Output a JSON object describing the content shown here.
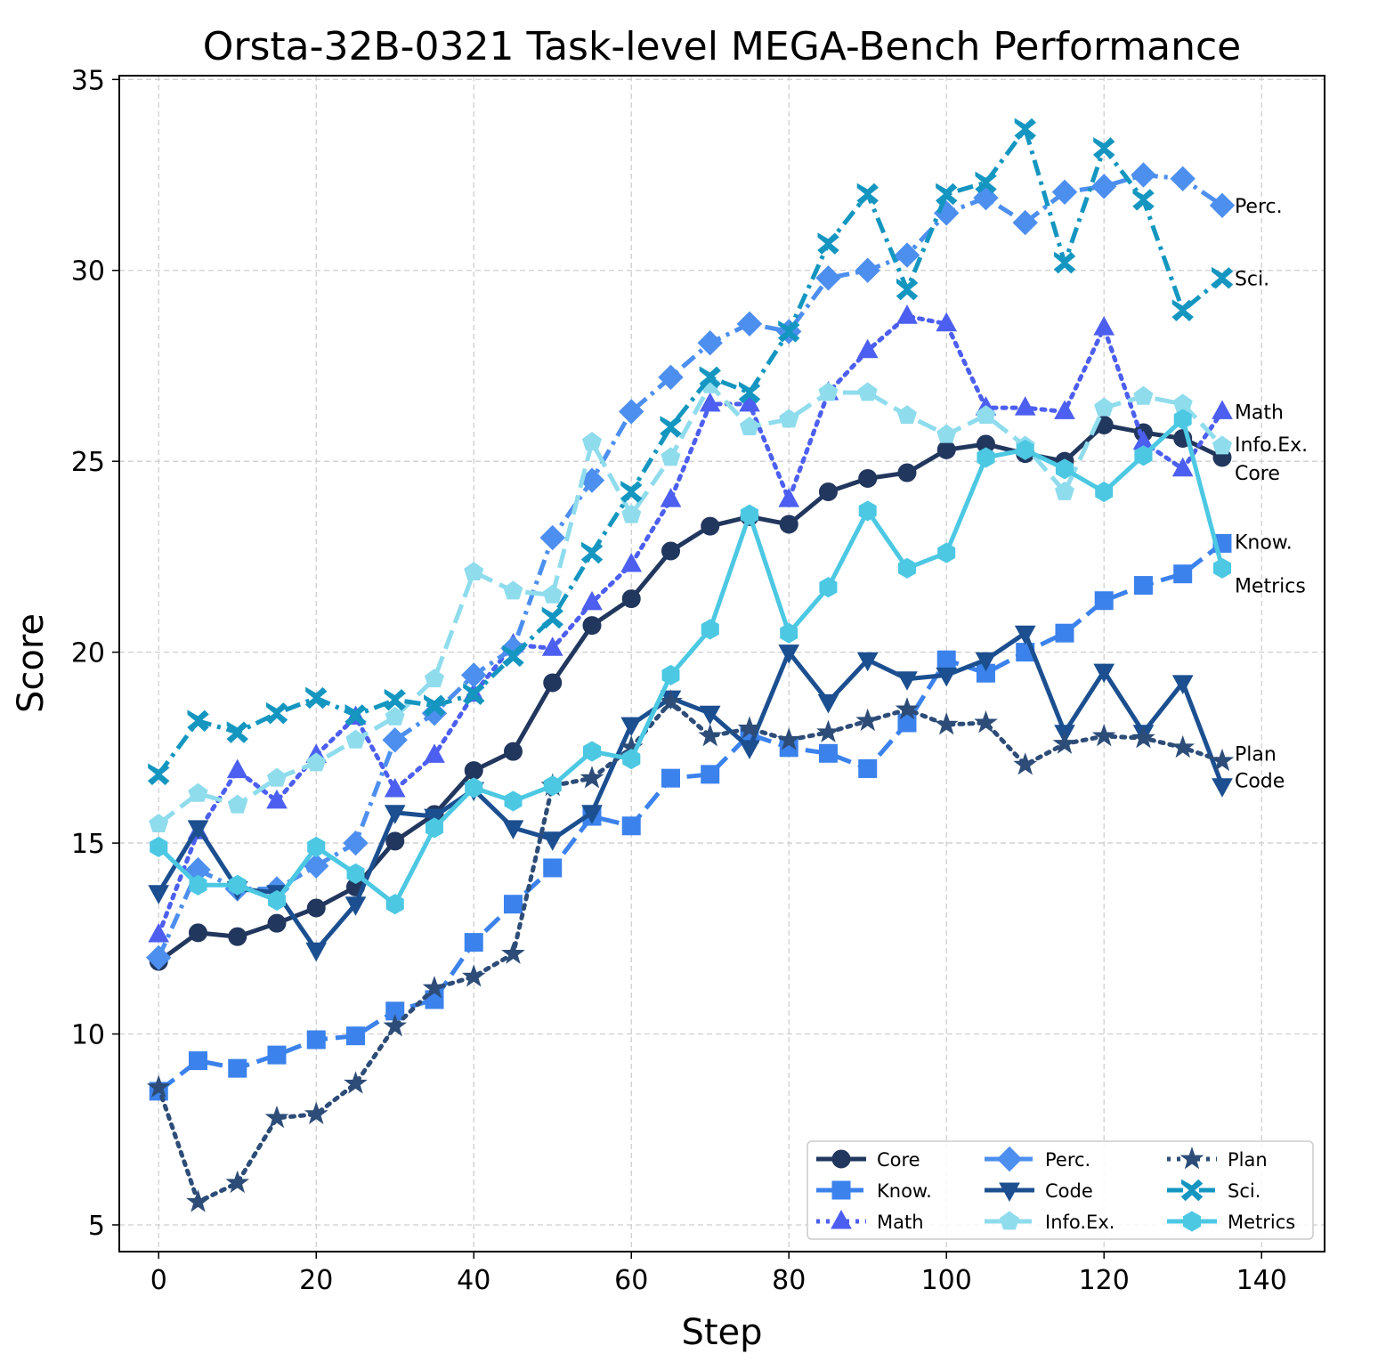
{
  "chart_data": {
    "type": "line",
    "title": "Orsta-32B-0321 Task-level MEGA-Bench Performance",
    "xlabel": "Step",
    "ylabel": "Score",
    "xlim": [
      -5,
      148
    ],
    "ylim": [
      4.3,
      35.1
    ],
    "xticks": [
      0,
      20,
      40,
      60,
      80,
      100,
      120,
      140
    ],
    "yticks": [
      5,
      10,
      15,
      20,
      25,
      30,
      35
    ],
    "grid": true,
    "legend_position": "lower-right",
    "legend_columns": 3,
    "x": [
      0,
      5,
      10,
      15,
      20,
      25,
      30,
      35,
      40,
      45,
      50,
      55,
      60,
      65,
      70,
      75,
      80,
      85,
      90,
      95,
      100,
      105,
      110,
      115,
      120,
      125,
      130,
      135
    ],
    "series": [
      {
        "name": "Core",
        "end_label": "Core",
        "color": "#22375e",
        "dash": "solid",
        "marker": "circle",
        "values": [
          11.9,
          12.65,
          12.55,
          12.9,
          13.3,
          13.85,
          15.05,
          15.75,
          16.9,
          17.4,
          19.2,
          20.7,
          21.4,
          22.65,
          23.3,
          23.55,
          23.35,
          24.2,
          24.55,
          24.7,
          25.3,
          25.45,
          25.2,
          25.0,
          25.95,
          25.75,
          25.6,
          25.1
        ]
      },
      {
        "name": "Know.",
        "end_label": "Know.",
        "color": "#3b82ec",
        "dash": "longdash",
        "marker": "square",
        "values": [
          8.5,
          9.3,
          9.1,
          9.45,
          9.85,
          9.95,
          10.6,
          10.9,
          12.4,
          13.4,
          14.35,
          15.7,
          15.45,
          16.7,
          16.8,
          17.85,
          17.5,
          17.35,
          16.95,
          18.15,
          19.8,
          19.45,
          20.0,
          20.5,
          21.35,
          21.75,
          22.05,
          22.85
        ]
      },
      {
        "name": "Math",
        "end_label": "Math",
        "color": "#4c5ff0",
        "dash": "dotted",
        "marker": "triangle-up",
        "values": [
          12.6,
          15.3,
          16.9,
          16.1,
          17.3,
          18.3,
          16.4,
          17.3,
          18.9,
          20.2,
          20.1,
          21.3,
          22.3,
          24.0,
          26.5,
          26.5,
          24.0,
          26.8,
          27.9,
          28.8,
          28.6,
          26.4,
          26.4,
          26.3,
          28.5,
          25.5,
          24.8,
          26.3
        ]
      },
      {
        "name": "Perc.",
        "end_label": "Perc.",
        "color": "#4d8fef",
        "dash": "dashdot",
        "marker": "diamond",
        "values": [
          12.0,
          14.3,
          13.8,
          13.8,
          14.4,
          15.0,
          17.7,
          18.4,
          19.4,
          20.1,
          23.0,
          24.5,
          26.3,
          27.2,
          28.1,
          28.6,
          28.4,
          29.8,
          30.0,
          30.4,
          31.5,
          31.9,
          31.25,
          32.05,
          32.2,
          32.5,
          32.4,
          31.7
        ]
      },
      {
        "name": "Code",
        "end_label": "Code",
        "color": "#1b4f90",
        "dash": "solid",
        "marker": "triangle-down",
        "values": [
          13.7,
          15.4,
          13.8,
          13.7,
          12.2,
          13.4,
          15.8,
          15.7,
          16.4,
          15.4,
          15.1,
          15.8,
          18.1,
          18.8,
          18.4,
          17.5,
          20.0,
          18.7,
          19.8,
          19.3,
          19.4,
          19.8,
          20.5,
          17.9,
          19.5,
          17.9,
          19.2,
          16.5
        ]
      },
      {
        "name": "Info.Ex.",
        "end_label": "Info.Ex.",
        "color": "#8fdced",
        "dash": "longdash",
        "marker": "pentagon",
        "values": [
          15.5,
          16.3,
          16.0,
          16.7,
          17.1,
          17.7,
          18.3,
          19.3,
          22.1,
          21.6,
          21.5,
          25.5,
          23.6,
          25.1,
          27.0,
          25.9,
          26.1,
          26.8,
          26.8,
          26.2,
          25.7,
          26.2,
          25.4,
          24.2,
          26.4,
          26.7,
          26.5,
          25.4
        ]
      },
      {
        "name": "Plan",
        "end_label": "Plan",
        "color": "#2d4d78",
        "dash": "dotted",
        "marker": "star",
        "values": [
          8.6,
          5.6,
          6.1,
          7.8,
          7.9,
          8.7,
          10.2,
          11.2,
          11.5,
          12.1,
          16.5,
          16.7,
          17.5,
          18.7,
          17.8,
          18.0,
          17.7,
          17.9,
          18.2,
          18.5,
          18.1,
          18.15,
          17.05,
          17.6,
          17.8,
          17.75,
          17.5,
          17.15
        ]
      },
      {
        "name": "Sci.",
        "end_label": "Sci.",
        "color": "#1496c0",
        "dash": "dashdot",
        "marker": "x",
        "values": [
          16.8,
          18.2,
          17.9,
          18.4,
          18.8,
          18.35,
          18.75,
          18.6,
          18.9,
          19.9,
          20.9,
          22.6,
          24.2,
          25.9,
          27.2,
          26.8,
          28.4,
          30.7,
          32.0,
          29.5,
          32.0,
          32.3,
          33.7,
          30.2,
          33.2,
          31.85,
          28.95,
          29.8
        ]
      },
      {
        "name": "Metrics",
        "end_label": "Metrics",
        "color": "#4cc8e3",
        "dash": "solid",
        "marker": "hexagon",
        "values": [
          14.9,
          13.9,
          13.9,
          13.5,
          14.9,
          14.2,
          13.4,
          15.4,
          16.45,
          16.1,
          16.5,
          17.4,
          17.2,
          19.4,
          20.6,
          23.6,
          20.5,
          21.7,
          23.7,
          22.2,
          22.6,
          25.1,
          25.3,
          24.8,
          24.2,
          25.15,
          26.1,
          22.2
        ]
      }
    ]
  }
}
